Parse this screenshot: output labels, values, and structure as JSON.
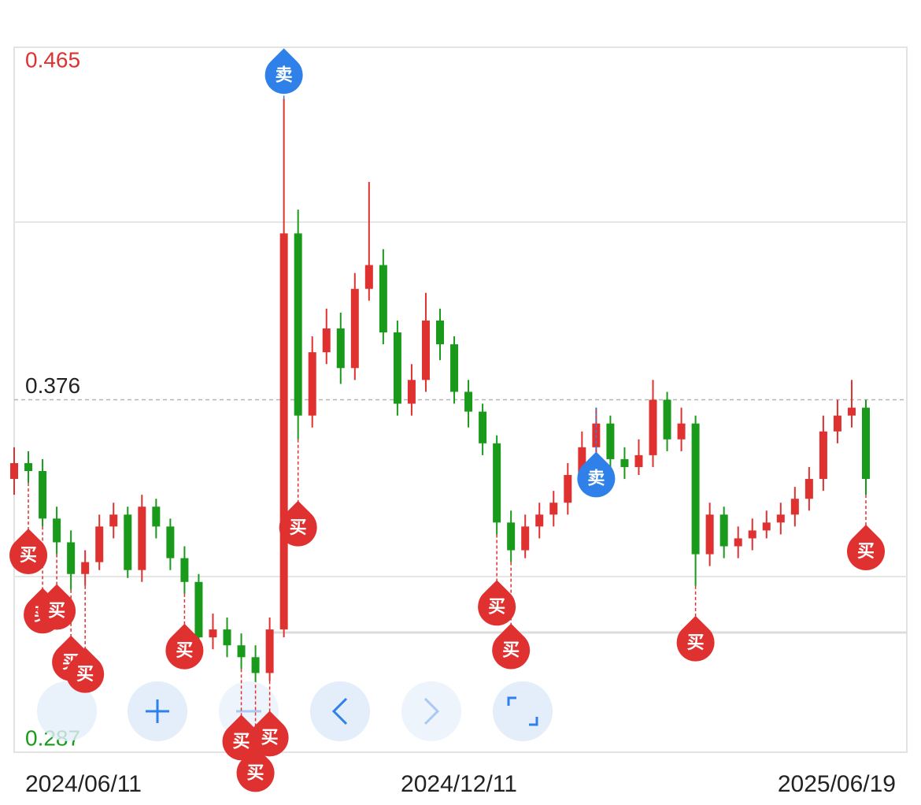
{
  "chart_data": {
    "type": "candlestick",
    "ylim": [
      0.287,
      0.465
    ],
    "yticks": [
      0.287,
      0.376,
      0.465
    ],
    "categories": [
      "2024/06/11",
      null,
      null,
      null,
      null,
      null,
      null,
      null,
      null,
      null,
      null,
      null,
      null,
      null,
      null,
      null,
      null,
      null,
      null,
      null,
      null,
      null,
      null,
      null,
      null,
      null,
      null,
      null,
      null,
      null,
      "2024/12/11",
      null,
      null,
      null,
      null,
      null,
      null,
      null,
      null,
      null,
      null,
      null,
      null,
      null,
      null,
      null,
      null,
      null,
      null,
      null,
      null,
      null,
      null,
      null,
      null,
      null,
      null,
      null,
      null,
      null,
      "2025/06/19"
    ],
    "up_color": "#e03131",
    "down_color": "#1a9a1a",
    "open": [
      0.356,
      0.36,
      0.358,
      0.346,
      0.34,
      0.332,
      0.335,
      0.344,
      0.347,
      0.333,
      0.349,
      0.344,
      0.336,
      0.33,
      0.316,
      0.318,
      0.314,
      0.311,
      0.307,
      0.318,
      0.418,
      0.372,
      0.388,
      0.394,
      0.384,
      0.404,
      0.41,
      0.393,
      0.375,
      0.381,
      0.396,
      0.39,
      0.378,
      0.373,
      0.365,
      0.345,
      0.338,
      0.344,
      0.347,
      0.35,
      0.357,
      0.364,
      0.37,
      0.361,
      0.359,
      0.362,
      0.376,
      0.366,
      0.37,
      0.337,
      0.347,
      0.339,
      0.341,
      0.343,
      0.345,
      0.347,
      0.351,
      0.356,
      0.368,
      0.372,
      0.374
    ],
    "high": [
      0.364,
      0.363,
      0.361,
      0.349,
      0.343,
      0.338,
      0.347,
      0.35,
      0.349,
      0.352,
      0.351,
      0.346,
      0.339,
      0.332,
      0.322,
      0.321,
      0.317,
      0.314,
      0.321,
      0.452,
      0.424,
      0.392,
      0.399,
      0.398,
      0.408,
      0.431,
      0.414,
      0.396,
      0.385,
      0.403,
      0.399,
      0.392,
      0.381,
      0.375,
      0.367,
      0.348,
      0.347,
      0.35,
      0.353,
      0.36,
      0.368,
      0.374,
      0.372,
      0.364,
      0.366,
      0.381,
      0.378,
      0.374,
      0.372,
      0.35,
      0.349,
      0.344,
      0.346,
      0.348,
      0.35,
      0.354,
      0.359,
      0.372,
      0.376,
      0.381,
      0.376
    ],
    "low": [
      0.352,
      0.355,
      0.344,
      0.337,
      0.328,
      0.329,
      0.333,
      0.341,
      0.331,
      0.33,
      0.341,
      0.333,
      0.327,
      0.313,
      0.313,
      0.311,
      0.308,
      0.304,
      0.305,
      0.316,
      0.366,
      0.369,
      0.385,
      0.38,
      0.381,
      0.401,
      0.39,
      0.372,
      0.372,
      0.378,
      0.386,
      0.375,
      0.369,
      0.362,
      0.342,
      0.335,
      0.336,
      0.341,
      0.344,
      0.347,
      0.354,
      0.361,
      0.358,
      0.356,
      0.357,
      0.359,
      0.363,
      0.363,
      0.329,
      0.334,
      0.336,
      0.336,
      0.338,
      0.341,
      0.342,
      0.344,
      0.348,
      0.353,
      0.365,
      0.369,
      0.352
    ],
    "close": [
      0.36,
      0.358,
      0.346,
      0.34,
      0.332,
      0.335,
      0.344,
      0.347,
      0.333,
      0.349,
      0.344,
      0.336,
      0.33,
      0.316,
      0.318,
      0.314,
      0.311,
      0.307,
      0.318,
      0.418,
      0.372,
      0.388,
      0.394,
      0.384,
      0.404,
      0.41,
      0.393,
      0.375,
      0.381,
      0.396,
      0.39,
      0.378,
      0.373,
      0.365,
      0.345,
      0.338,
      0.344,
      0.347,
      0.35,
      0.357,
      0.364,
      0.37,
      0.361,
      0.359,
      0.362,
      0.376,
      0.366,
      0.37,
      0.337,
      0.347,
      0.339,
      0.341,
      0.343,
      0.345,
      0.347,
      0.351,
      0.356,
      0.368,
      0.372,
      0.374,
      0.356
    ],
    "signals": [
      null,
      "买",
      "买",
      "买",
      "买",
      "买",
      null,
      null,
      null,
      null,
      null,
      null,
      "买",
      null,
      null,
      null,
      "买",
      "买",
      "买",
      "卖",
      "买",
      null,
      null,
      null,
      null,
      null,
      null,
      null,
      null,
      null,
      null,
      null,
      null,
      null,
      "买",
      "买",
      null,
      null,
      null,
      null,
      null,
      "卖",
      null,
      null,
      null,
      null,
      null,
      null,
      "买",
      null,
      null,
      null,
      null,
      null,
      null,
      null,
      null,
      null,
      null,
      null,
      "买"
    ],
    "buy_color": "#e03131",
    "sell_color": "#2f80e8"
  }
}
